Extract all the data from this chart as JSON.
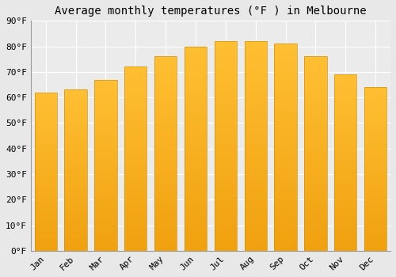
{
  "title": "Average monthly temperatures (°F ) in Melbourne",
  "months": [
    "Jan",
    "Feb",
    "Mar",
    "Apr",
    "May",
    "Jun",
    "Jul",
    "Aug",
    "Sep",
    "Oct",
    "Nov",
    "Dec"
  ],
  "values": [
    62,
    63,
    67,
    72,
    76,
    80,
    82,
    82,
    81,
    76,
    69,
    64
  ],
  "bar_color_top": "#FFB733",
  "bar_color_bottom": "#F0A000",
  "bar_edge_color": "#D4920A",
  "ylim": [
    0,
    90
  ],
  "ytick_step": 10,
  "background_color": "#E8E8E8",
  "plot_area_color": "#EBEBEB",
  "grid_color": "#FFFFFF",
  "title_fontsize": 10,
  "tick_fontsize": 8,
  "font_family": "monospace"
}
